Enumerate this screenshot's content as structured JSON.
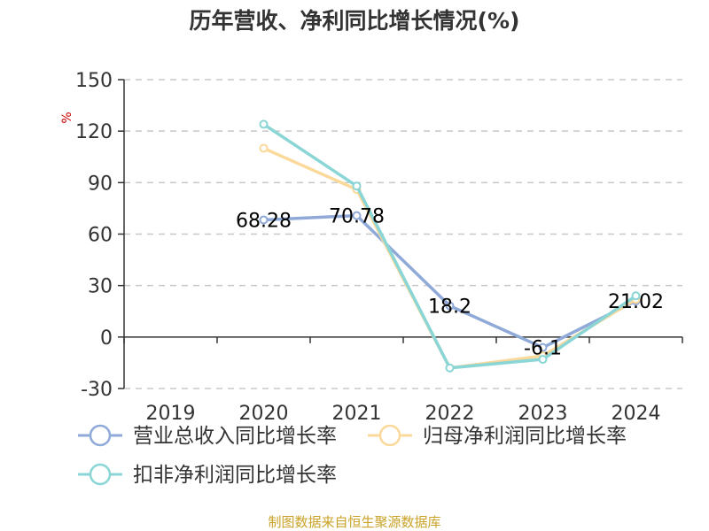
{
  "colors": {
    "revenue": "#8fa9d8",
    "net_profit": "#fad99b",
    "deducted_profit": "#8ad6d6",
    "axis": "#333333",
    "grid": "#c8c8c8",
    "unit": "#cc0000",
    "source": "#c9a227"
  },
  "chart_data": {
    "type": "line",
    "title": "历年营收、净利同比增长情况(%)",
    "ylabel": "%",
    "xlabel": "",
    "categories": [
      "2019",
      "2020",
      "2021",
      "2022",
      "2023",
      "2024"
    ],
    "ylim": [
      -30,
      150
    ],
    "yticks": [
      -30,
      0,
      30,
      60,
      90,
      120,
      150
    ],
    "yticks_labels": [
      "-30",
      "0",
      "30",
      "60",
      "90",
      "120",
      "150"
    ],
    "grid": true,
    "legend_position": "bottom-left",
    "series": [
      {
        "name": "营业总收入同比增长率",
        "color_key": "revenue",
        "values": [
          null,
          68.28,
          70.78,
          18.2,
          -6.1,
          21.02
        ],
        "labels": [
          "",
          "68.28",
          "70.78",
          "18.2",
          "-6.1",
          "21.02"
        ]
      },
      {
        "name": "归母净利润同比增长率",
        "color_key": "net_profit",
        "values": [
          null,
          110,
          86,
          -18,
          -11,
          22
        ],
        "labels": [
          "",
          "",
          "",
          "",
          "",
          ""
        ]
      },
      {
        "name": "扣非净利润同比增长率",
        "color_key": "deducted_profit",
        "values": [
          null,
          124,
          88,
          -18,
          -13,
          24
        ],
        "labels": [
          "",
          "",
          "",
          "",
          "",
          ""
        ]
      }
    ]
  },
  "footer": {
    "source": "制图数据来自恒生聚源数据库"
  }
}
